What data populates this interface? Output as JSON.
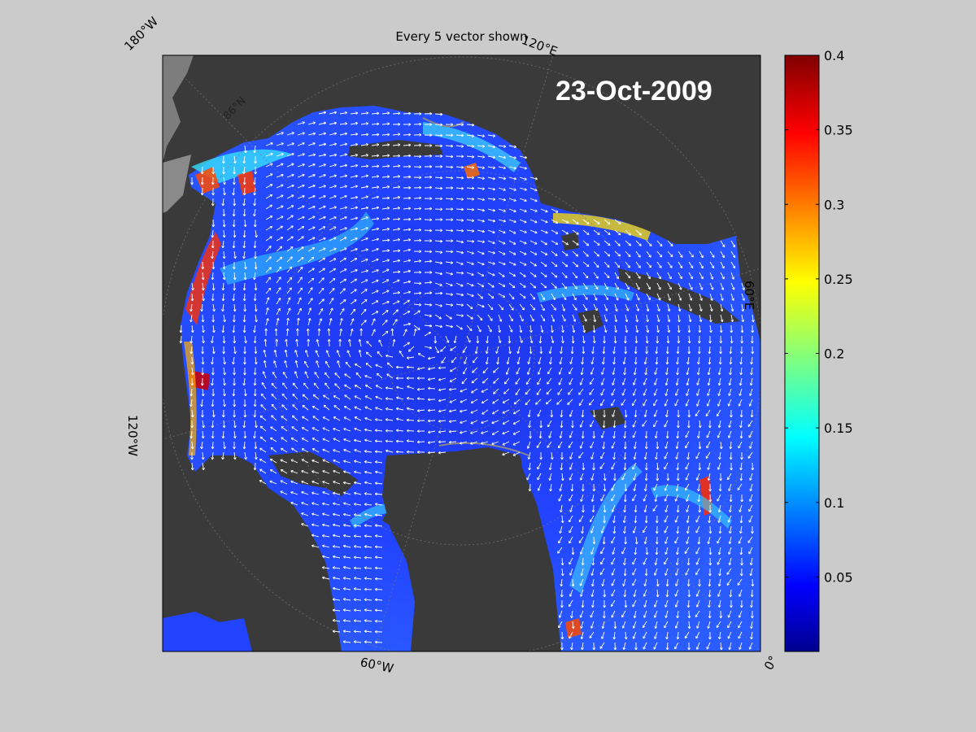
{
  "title": "Every 5 vector shown",
  "date": "23-Oct-2009",
  "longitude_labels": {
    "w180": "180°W",
    "e120": "120°E",
    "e60": "60°E",
    "w120": "120°W",
    "w60": "60°W",
    "zero": "0°"
  },
  "latitude_labels": {
    "n86": "86°N"
  },
  "colorbar": {
    "min": 0,
    "max": 0.4,
    "ticks": [
      "0.4",
      "0.35",
      "0.3",
      "0.25",
      "0.2",
      "0.15",
      "0.1",
      "0.05"
    ],
    "tick_values": [
      0.4,
      0.35,
      0.3,
      0.25,
      0.2,
      0.15,
      0.1,
      0.05
    ],
    "colormap": "jet"
  },
  "colors": {
    "background": "#cbcbcb",
    "land": "#3a3a3a",
    "outer_region": "#7d7d7d",
    "ice_base": "#2038ff",
    "vectors": "#ffffff"
  }
}
